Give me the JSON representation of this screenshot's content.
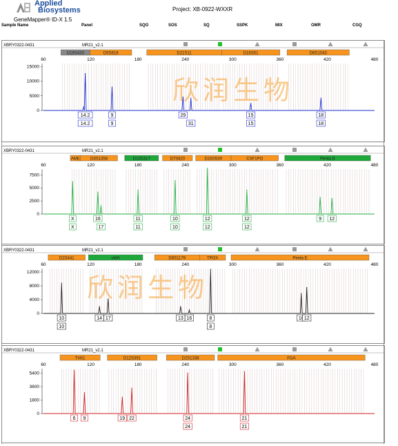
{
  "header": {
    "logo_line1": "Applied",
    "logo_line2": "Biosystems",
    "product": "GeneMapper® ID-X 1.5",
    "project": "Project: XB-0922-WXXR"
  },
  "columns": {
    "sample_name": "Sample Name",
    "panel": "Panel",
    "sqo": "SQO",
    "sos": "SOS",
    "sq": "SQ",
    "sspk": "SSPK",
    "mix": "MIX",
    "omr": "OMR",
    "cgq": "CGQ"
  },
  "watermark": "欣润生物",
  "colors": {
    "orange_marker": "#f7941d",
    "green_marker": "#1fa83a",
    "gray_marker": "#888888",
    "blue_trace": "#1e2fd0",
    "green_trace": "#21b041",
    "black_trace": "#202020",
    "red_trace": "#d02020",
    "qc_green": "#1fc12a",
    "qc_gray": "#999999"
  },
  "x_axis_ticks": [
    "60",
    "120",
    "180",
    "240",
    "300",
    "360",
    "420",
    "480"
  ],
  "panels": [
    {
      "id": "blue",
      "sample": "XBRY0322-0431",
      "panel": "MR21_v2.1",
      "trace": "blue",
      "y_ticks": [
        "15000",
        "10000",
        "5000",
        "0"
      ],
      "y_values": [
        15000,
        10000,
        5000,
        0
      ],
      "y_max": 16000,
      "markers": [
        {
          "name": "D19S433",
          "start": 82,
          "end": 119,
          "color": "gray"
        },
        {
          "name": "D5S818",
          "start": 119,
          "end": 172,
          "color": "orange"
        },
        {
          "name": "D21S11",
          "start": 191,
          "end": 286,
          "color": "orange"
        },
        {
          "name": "D18S51",
          "start": 286,
          "end": 360,
          "color": "orange"
        },
        {
          "name": "D6S1043",
          "start": 369,
          "end": 448,
          "color": "orange"
        }
      ],
      "peaks": [
        {
          "bp": 111,
          "h": 1200,
          "alleles": []
        },
        {
          "bp": 113,
          "h": 12600,
          "alleles": [
            "14.2",
            "14.2"
          ]
        },
        {
          "bp": 147,
          "h": 8000,
          "alleles": [
            "9",
            "9"
          ]
        },
        {
          "bp": 237,
          "h": 4600,
          "alleles": [
            "29",
            ""
          ]
        },
        {
          "bp": 247,
          "h": 4200,
          "alleles": [
            "",
            "31"
          ]
        },
        {
          "bp": 323,
          "h": 2400,
          "alleles": [
            "15",
            "15"
          ]
        },
        {
          "bp": 412,
          "h": 4200,
          "alleles": [
            "18",
            "18"
          ]
        }
      ]
    },
    {
      "id": "green",
      "sample": "XBRY0322-0431",
      "panel": "MR21_v2.1",
      "trace": "green",
      "y_ticks": [
        "7500",
        "5000",
        "2500",
        "0"
      ],
      "y_values": [
        7500,
        5000,
        2500,
        0
      ],
      "y_max": 8600,
      "markers": [
        {
          "name": "AME",
          "start": 94,
          "end": 107,
          "color": "orange"
        },
        {
          "name": "D3S1358",
          "start": 107,
          "end": 154,
          "color": "orange"
        },
        {
          "name": "D13S317",
          "start": 163,
          "end": 206,
          "color": "green"
        },
        {
          "name": "D7S820",
          "start": 211,
          "end": 249,
          "color": "orange"
        },
        {
          "name": "D16S539",
          "start": 253,
          "end": 298,
          "color": "orange"
        },
        {
          "name": "CSF1PO",
          "start": 298,
          "end": 358,
          "color": "orange"
        },
        {
          "name": "Penta D",
          "start": 366,
          "end": 475,
          "color": "green"
        }
      ],
      "peaks": [
        {
          "bp": 97,
          "h": 6200,
          "alleles": [
            "X",
            "X"
          ]
        },
        {
          "bp": 129,
          "h": 4200,
          "alleles": [
            "16",
            ""
          ]
        },
        {
          "bp": 133,
          "h": 1600,
          "alleles": [
            "",
            "17"
          ]
        },
        {
          "bp": 180,
          "h": 4600,
          "alleles": [
            "11",
            "11"
          ]
        },
        {
          "bp": 227,
          "h": 6400,
          "alleles": [
            "10",
            "10"
          ]
        },
        {
          "bp": 268,
          "h": 8800,
          "alleles": [
            "12",
            "12"
          ]
        },
        {
          "bp": 318,
          "h": 4600,
          "alleles": [
            "12",
            "12"
          ]
        },
        {
          "bp": 411,
          "h": 3200,
          "alleles": [
            "9",
            ""
          ]
        },
        {
          "bp": 426,
          "h": 3000,
          "alleles": [
            "12",
            ""
          ]
        }
      ]
    },
    {
      "id": "black",
      "sample": "XBRY0322-0431",
      "panel": "MR21_v2.1",
      "trace": "black",
      "y_ticks": [
        "12000",
        "8000",
        "4000",
        "0"
      ],
      "y_values": [
        12000,
        8000,
        4000,
        0
      ],
      "y_max": 13000,
      "markers": [
        {
          "name": "D2S441",
          "start": 66,
          "end": 113,
          "color": "orange"
        },
        {
          "name": "vWA",
          "start": 117,
          "end": 186,
          "color": "green"
        },
        {
          "name": "D8S1179",
          "start": 201,
          "end": 258,
          "color": "orange"
        },
        {
          "name": "TPOX",
          "start": 258,
          "end": 291,
          "color": "orange"
        },
        {
          "name": "Penta E",
          "start": 298,
          "end": 473,
          "color": "orange"
        }
      ],
      "peaks": [
        {
          "bp": 83,
          "h": 8800,
          "alleles": [
            "10",
            "10"
          ]
        },
        {
          "bp": 131,
          "h": 2000,
          "alleles": [
            "14",
            ""
          ]
        },
        {
          "bp": 142,
          "h": 4200,
          "alleles": [
            "17",
            ""
          ]
        },
        {
          "bp": 234,
          "h": 2000,
          "alleles": [
            "13",
            ""
          ]
        },
        {
          "bp": 245,
          "h": 1000,
          "alleles": [
            "16",
            ""
          ]
        },
        {
          "bp": 272,
          "h": 12800,
          "alleles": [
            "8",
            "8"
          ]
        },
        {
          "bp": 387,
          "h": 5800,
          "alleles": [
            "10",
            ""
          ]
        },
        {
          "bp": 394,
          "h": 7500,
          "alleles": [
            "12",
            ""
          ]
        }
      ]
    },
    {
      "id": "red",
      "sample": "XBRY0322-0431",
      "panel": "MR21_v2.1",
      "trace": "red",
      "y_ticks": [
        "5400",
        "3600",
        "1800",
        "0"
      ],
      "y_values": [
        5400,
        3600,
        1800,
        0
      ],
      "y_max": 6000,
      "markers": [
        {
          "name": "TH01",
          "start": 81,
          "end": 132,
          "color": "orange"
        },
        {
          "name": "D12S391",
          "start": 141,
          "end": 204,
          "color": "orange"
        },
        {
          "name": "D2S1338",
          "start": 216,
          "end": 277,
          "color": "orange"
        },
        {
          "name": "FGA",
          "start": 281,
          "end": 468,
          "color": "orange"
        }
      ],
      "peaks": [
        {
          "bp": 99,
          "h": 5800,
          "alleles": [
            "6",
            ""
          ]
        },
        {
          "bp": 112,
          "h": 2800,
          "alleles": [
            "9",
            ""
          ]
        },
        {
          "bp": 160,
          "h": 2200,
          "alleles": [
            "19",
            ""
          ]
        },
        {
          "bp": 172,
          "h": 3400,
          "alleles": [
            "22",
            ""
          ]
        },
        {
          "bp": 243,
          "h": 5400,
          "alleles": [
            "24",
            "24"
          ]
        },
        {
          "bp": 315,
          "h": 5600,
          "alleles": [
            "21",
            "21"
          ]
        }
      ]
    }
  ]
}
